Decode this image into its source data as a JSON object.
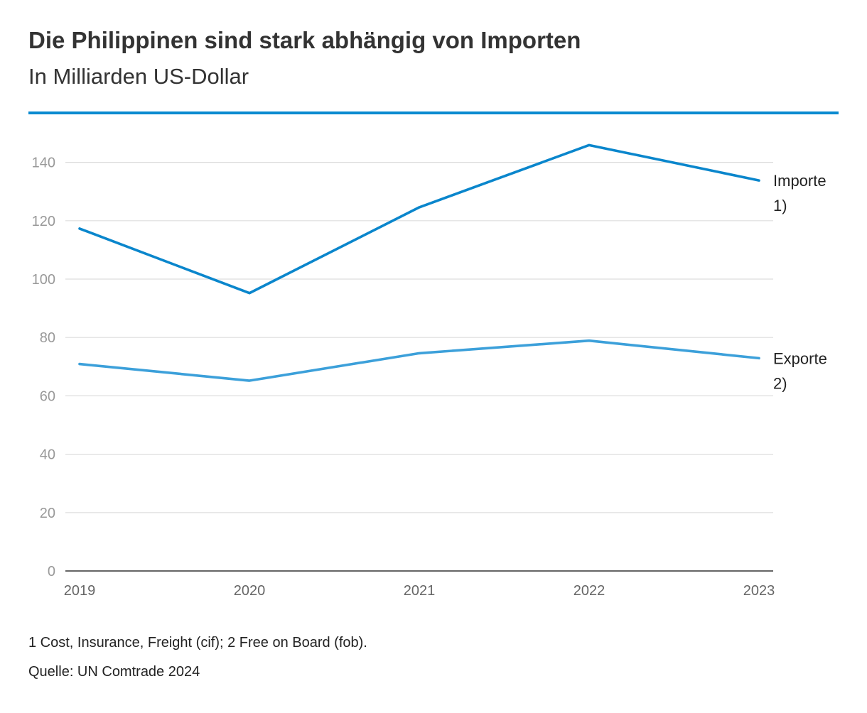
{
  "chart_data": {
    "type": "line",
    "title": "Die Philippinen sind stark abhängig von Importen",
    "subtitle": "In Milliarden US-Dollar",
    "x": [
      "2019",
      "2020",
      "2021",
      "2022",
      "2023"
    ],
    "ylim": [
      0,
      150
    ],
    "yticks": [
      0,
      20,
      40,
      60,
      80,
      100,
      120,
      140
    ],
    "grid": true,
    "series": [
      {
        "name": "Importe",
        "label_lines": [
          "Importe",
          "1)"
        ],
        "color": "#0a86cc",
        "values": [
          117.3,
          95.2,
          124.6,
          145.9,
          133.8
        ]
      },
      {
        "name": "Exporte",
        "label_lines": [
          "Exporte",
          "2)"
        ],
        "color": "#3ca0da",
        "values": [
          70.9,
          65.2,
          74.6,
          78.9,
          72.9
        ]
      }
    ],
    "footnote": "1 Cost, Insurance, Freight (cif); 2 Free on Board (fob).",
    "source": "Quelle: UN Comtrade 2024"
  }
}
